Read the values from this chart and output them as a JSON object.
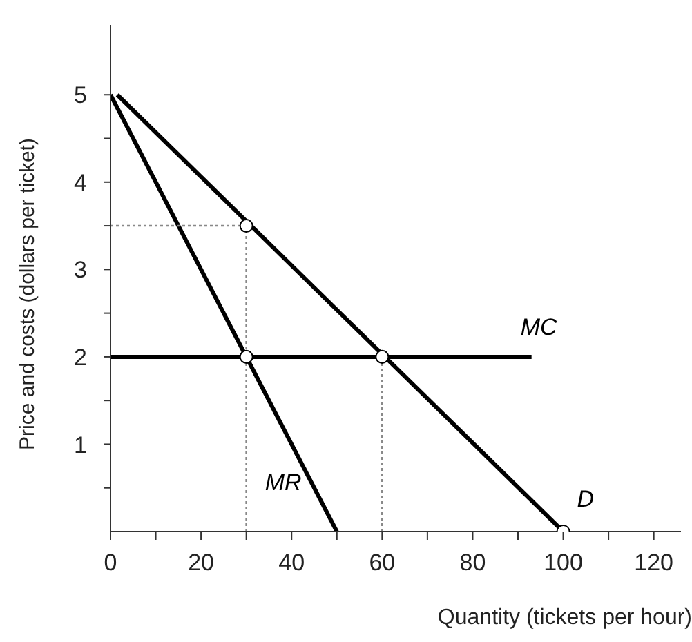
{
  "chart_data": {
    "type": "line",
    "xlabel": "Quantity (tickets per hour)",
    "ylabel": "Price and costs (dollars per ticket)",
    "xlim": [
      0,
      126
    ],
    "ylim": [
      0,
      5.8
    ],
    "xticks": [
      0,
      {
        "value": 10,
        "label": null
      },
      20,
      {
        "value": 30,
        "label": null
      },
      40,
      {
        "value": 50,
        "label": null
      },
      60,
      {
        "value": 70,
        "label": null
      },
      80,
      {
        "value": 90,
        "label": null
      },
      100,
      {
        "value": 110,
        "label": null
      },
      120
    ],
    "yticks": [
      {
        "value": 0.5,
        "label": null
      },
      1,
      {
        "value": 1.5,
        "label": null
      },
      2,
      {
        "value": 2.5,
        "label": null
      },
      3,
      {
        "value": 3.5,
        "label": null
      },
      4,
      {
        "value": 4.5,
        "label": null
      },
      5
    ],
    "grid": false,
    "series": [
      {
        "name": "D",
        "color": "#000000",
        "x": [
          1.5,
          100
        ],
        "values": [
          5,
          0
        ]
      },
      {
        "name": "MR",
        "color": "#000000",
        "x": [
          0,
          50
        ],
        "values": [
          5,
          0
        ]
      },
      {
        "name": "MC",
        "color": "#000000",
        "x": [
          0,
          93
        ],
        "values": [
          2,
          2
        ]
      },
      {
        "color": "#888888",
        "line_style": "dotted",
        "x": [
          0,
          30
        ],
        "values": [
          3.5,
          3.5
        ]
      },
      {
        "color": "#888888",
        "line_style": "dotted",
        "x": [
          30,
          30
        ],
        "values": [
          0,
          3.5
        ]
      },
      {
        "color": "#888888",
        "line_style": "dotted",
        "x": [
          60,
          60
        ],
        "values": [
          0,
          2
        ]
      },
      {
        "type": "scatter",
        "marker": "circle",
        "color": "#000000",
        "x": [
          30,
          30,
          60,
          100
        ],
        "values": [
          3.5,
          2,
          2,
          0
        ]
      }
    ]
  }
}
